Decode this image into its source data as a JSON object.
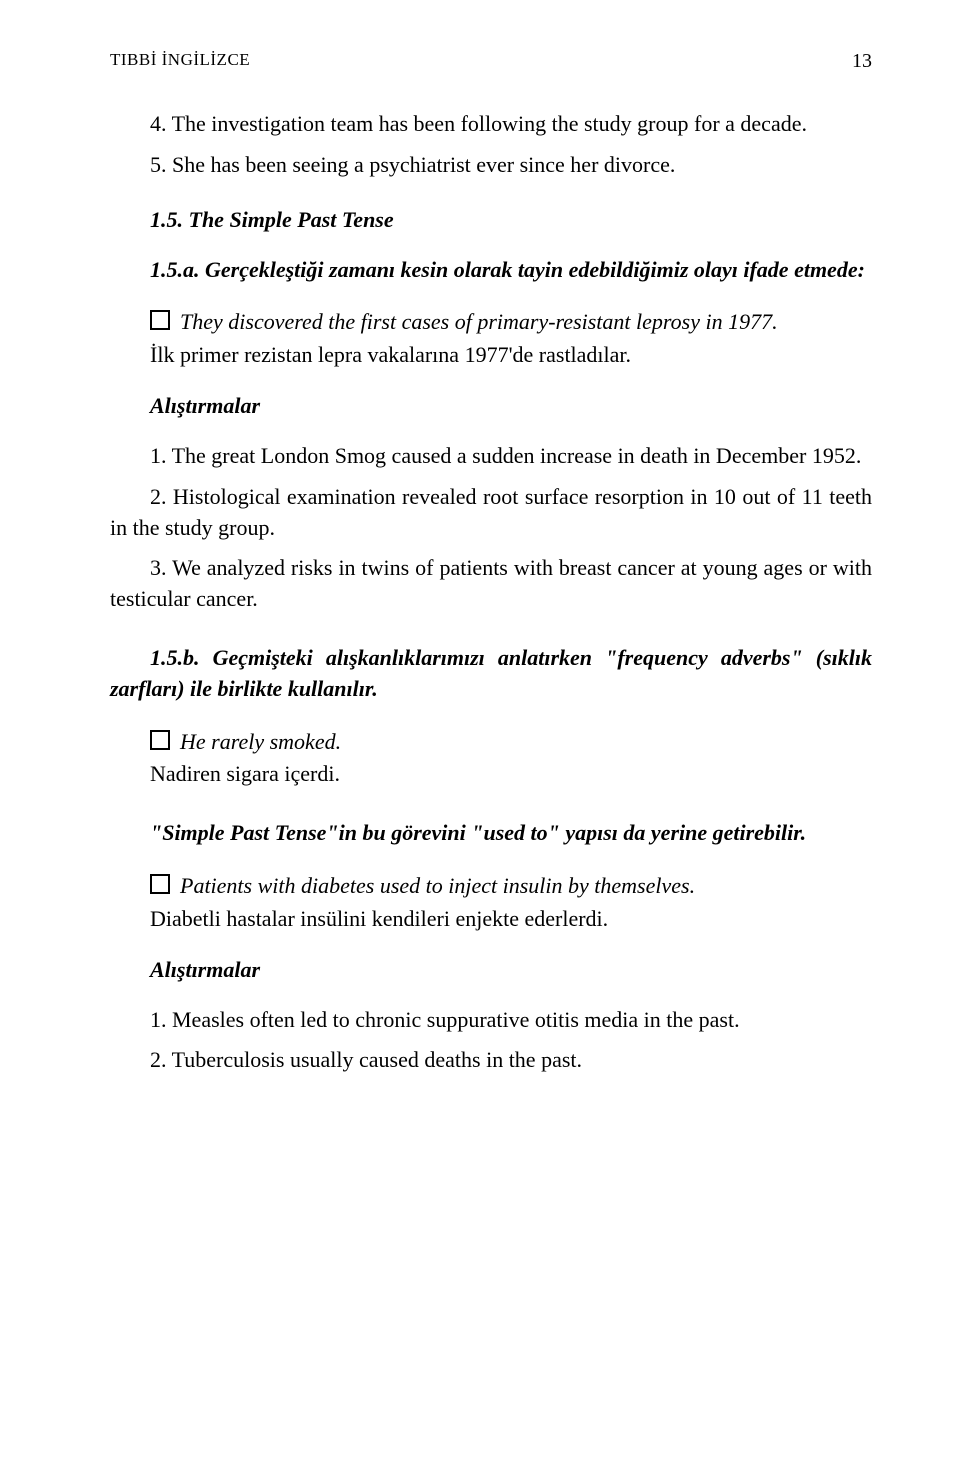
{
  "header": {
    "title": "TIBBİ İNGİLİZCE",
    "page_number": "13"
  },
  "text": {
    "p1": "4. The investigation team has been following the study group for a decade.",
    "p2": "5. She has been seeing a psychiatrist ever since her divorce.",
    "h1": "1.5. The Simple Past Tense",
    "h2": "1.5.a. Gerçekleştiği zamanı kesin olarak tayin edebildiğimiz olayı ifade etmede:",
    "b1": "They discovered the first cases of primary-resistant leprosy in 1977.",
    "b1_tr": "İlk primer rezistan lepra vakalarına 1977'de rastladılar.",
    "a1": "Alıştırmalar",
    "ex1": "1. The great London Smog caused a sudden increase in death in December 1952.",
    "ex2": "2. Histological examination revealed root surface resorption in 10 out of 11 teeth in the study group.",
    "ex3": "3. We analyzed risks in twins of patients with breast cancer at young ages or with testicular cancer.",
    "h3": "1.5.b. Geçmişteki alışkanlıklarımızı anlatırken \"frequency adverbs\" (sıklık zarfları) ile birlikte kullanılır.",
    "b2": "He rarely smoked.",
    "b2_tr": "Nadiren sigara içerdi.",
    "h4": "\"Simple Past Tense\"in bu görevini \"used to\" yapısı da yerine getirebilir.",
    "b3": "Patients with diabetes used to inject insulin by themselves.",
    "b3_tr": " Diabetli hastalar insülini kendileri enjekte ederlerdi.",
    "a2": "Alıştırmalar",
    "ex4": "1. Measles often led to chronic suppurative otitis media in the past.",
    "ex5": "2. Tuberculosis usually caused deaths in the past."
  },
  "colors": {
    "text": "#000000",
    "background": "#ffffff"
  },
  "fontsize": {
    "header": 17,
    "pagenum": 20,
    "body": 22
  }
}
